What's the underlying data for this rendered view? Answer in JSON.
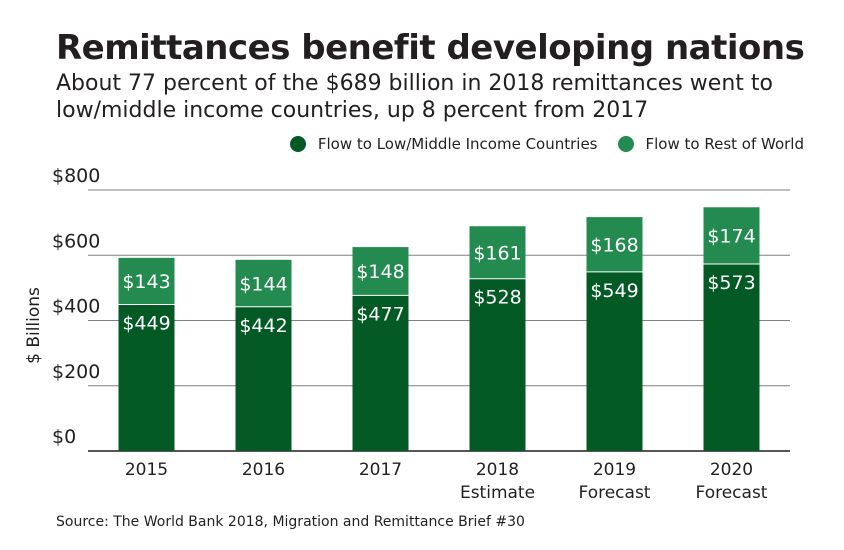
{
  "title": "Remittances benefit developing nations",
  "subtitle": "About 77 percent of the $689 billion in 2018 remittances went to low/middle income countries, up 8 percent from 2017",
  "source": "Source: The World Bank 2018, Migration and Remittance Brief #30",
  "colors": {
    "low_middle": "#045a25",
    "rest": "#238b4f",
    "grid": "#808080",
    "axis": "#231f20"
  },
  "chart_data": {
    "type": "bar",
    "stacked": true,
    "categories": [
      "2015",
      "2016",
      "2017",
      "2018 Estimate",
      "2019 Forecast",
      "2020 Forecast"
    ],
    "category_lines": [
      [
        "2015"
      ],
      [
        "2016"
      ],
      [
        "2017"
      ],
      [
        "2018",
        "Estimate"
      ],
      [
        "2019",
        "Forecast"
      ],
      [
        "2020",
        "Forecast"
      ]
    ],
    "series": [
      {
        "name": "Flow to Low/Middle Income Countries",
        "values": [
          449,
          442,
          477,
          528,
          549,
          573
        ],
        "labels": [
          "$449",
          "$442",
          "$477",
          "$528",
          "$549",
          "$573"
        ]
      },
      {
        "name": "Flow to Rest of World",
        "values": [
          143,
          144,
          148,
          161,
          168,
          174
        ],
        "labels": [
          "$143",
          "$144",
          "$148",
          "$161",
          "$168",
          "$174"
        ]
      }
    ],
    "ylabel": "$ Billions",
    "yticks": [
      0,
      200,
      400,
      600,
      800
    ],
    "ytick_labels": [
      "$0",
      "$200",
      "$400",
      "$600",
      "$800"
    ],
    "ylim": [
      0,
      800
    ],
    "grid": true,
    "legend_position": "top-right"
  }
}
